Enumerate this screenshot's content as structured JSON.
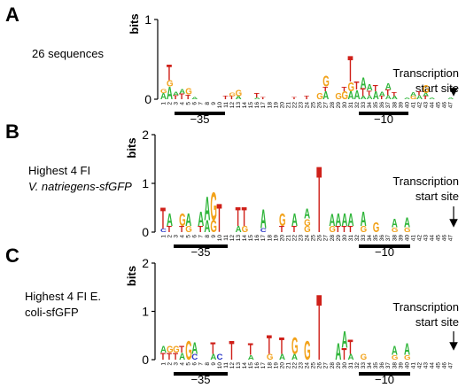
{
  "panels": [
    {
      "letter": "A",
      "description_lines": [
        "26 sequences"
      ],
      "y_axis_label": "bits",
      "y_ticks": [
        "0",
        "1"
      ],
      "positions": [
        "1",
        "2",
        "3",
        "4",
        "5",
        "6",
        "7",
        "8",
        "9",
        "10",
        "11",
        "12",
        "13",
        "14",
        "15",
        "16",
        "17",
        "18",
        "19",
        "20",
        "21",
        "22",
        "23",
        "24",
        "25",
        "26",
        "27",
        "28",
        "29",
        "30",
        "31",
        "32",
        "33",
        "34",
        "35",
        "36",
        "37",
        "38",
        "39",
        "40",
        "41",
        "42",
        "43",
        "44",
        "45",
        "46",
        "47"
      ],
      "annotation_lines": [
        "Transcription",
        "start site"
      ],
      "box_labels": [
        "−35",
        "−10"
      ]
    },
    {
      "letter": "B",
      "description_lines": [
        "Highest 4 FI",
        "V. natriegens-sfGFP"
      ],
      "y_axis_label": "bits",
      "y_ticks": [
        "0",
        "1",
        "2"
      ],
      "positions": [
        "1",
        "2",
        "3",
        "4",
        "5",
        "6",
        "7",
        "8",
        "9",
        "10",
        "11",
        "12",
        "13",
        "14",
        "15",
        "16",
        "17",
        "18",
        "19",
        "20",
        "21",
        "22",
        "23",
        "24",
        "25",
        "26",
        "27",
        "28",
        "29",
        "30",
        "31",
        "32",
        "33",
        "34",
        "35",
        "36",
        "37",
        "38",
        "39",
        "40",
        "41",
        "42",
        "43",
        "44",
        "45",
        "46",
        "47"
      ],
      "annotation_lines": [
        "Transcription",
        "start site"
      ],
      "box_labels": [
        "−35",
        "−10"
      ]
    },
    {
      "letter": "C",
      "description_lines": [
        "Highest 4 FI E.",
        "coli-sfGFP"
      ],
      "y_axis_label": "bits",
      "y_ticks": [
        "0",
        "1",
        "2"
      ],
      "positions": [
        "1",
        "2",
        "3",
        "4",
        "5",
        "6",
        "7",
        "8",
        "9",
        "10",
        "11",
        "12",
        "13",
        "14",
        "15",
        "16",
        "17",
        "18",
        "19",
        "20",
        "21",
        "22",
        "23",
        "24",
        "25",
        "26",
        "27",
        "28",
        "29",
        "30",
        "31",
        "32",
        "33",
        "34",
        "35",
        "36",
        "37",
        "38",
        "39",
        "40",
        "41",
        "42",
        "43",
        "44",
        "45",
        "46",
        "47"
      ],
      "annotation_lines": [
        "Transcription",
        "start site"
      ],
      "box_labels": [
        "−35",
        "−10"
      ]
    }
  ],
  "logos": [
    {
      "columns": [
        {
          "pos": 1,
          "stack": [
            [
              "A",
              0.08
            ],
            [
              "G",
              0.05
            ]
          ]
        },
        {
          "pos": 2,
          "stack": [
            [
              "A",
              0.16
            ],
            [
              "G",
              0.08
            ],
            [
              "T",
              0.2
            ]
          ]
        },
        {
          "pos": 3,
          "stack": [
            [
              "T",
              0.05
            ],
            [
              "A",
              0.04
            ]
          ]
        },
        {
          "pos": 4,
          "stack": [
            [
              "T",
              0.07
            ],
            [
              "A",
              0.06
            ]
          ]
        },
        {
          "pos": 5,
          "stack": [
            [
              "T",
              0.06
            ],
            [
              "G",
              0.08
            ]
          ]
        },
        {
          "pos": 6,
          "stack": [
            [
              "A",
              0.03
            ]
          ]
        },
        {
          "pos": 11,
          "stack": [
            [
              "T",
              0.04
            ]
          ]
        },
        {
          "pos": 12,
          "stack": [
            [
              "T",
              0.04
            ],
            [
              "G",
              0.04
            ]
          ]
        },
        {
          "pos": 13,
          "stack": [
            [
              "A",
              0.04
            ],
            [
              "G",
              0.08
            ]
          ]
        },
        {
          "pos": 16,
          "stack": [
            [
              "A",
              0.02
            ],
            [
              "T",
              0.06
            ]
          ]
        },
        {
          "pos": 17,
          "stack": [
            [
              "T",
              0.03
            ]
          ]
        },
        {
          "pos": 22,
          "stack": [
            [
              "T",
              0.03
            ]
          ]
        },
        {
          "pos": 24,
          "stack": [
            [
              "T",
              0.04
            ]
          ]
        },
        {
          "pos": 26,
          "stack": [
            [
              "G",
              0.08
            ]
          ]
        },
        {
          "pos": 27,
          "stack": [
            [
              "A",
              0.1
            ],
            [
              "T",
              0.06
            ],
            [
              "G",
              0.14
            ]
          ]
        },
        {
          "pos": 29,
          "stack": [
            [
              "G",
              0.08
            ]
          ]
        },
        {
          "pos": 30,
          "stack": [
            [
              "G",
              0.1
            ],
            [
              "T",
              0.06
            ]
          ]
        },
        {
          "pos": 31,
          "stack": [
            [
              "A",
              0.1
            ],
            [
              "G",
              0.12
            ],
            [
              "T",
              0.33
            ]
          ]
        },
        {
          "pos": 32,
          "stack": [
            [
              "A",
              0.12
            ],
            [
              "T",
              0.1
            ]
          ]
        },
        {
          "pos": 33,
          "stack": [
            [
              "A",
              0.04
            ],
            [
              "T",
              0.1
            ],
            [
              "A",
              0.14
            ]
          ]
        },
        {
          "pos": 34,
          "stack": [
            [
              "A",
              0.05
            ],
            [
              "T",
              0.06
            ],
            [
              "A",
              0.08
            ]
          ]
        },
        {
          "pos": 35,
          "stack": [
            [
              "A",
              0.1
            ],
            [
              "T",
              0.08
            ]
          ]
        },
        {
          "pos": 36,
          "stack": [
            [
              "T",
              0.04
            ],
            [
              "A",
              0.06
            ]
          ]
        },
        {
          "pos": 37,
          "stack": [
            [
              "A",
              0.05
            ],
            [
              "T",
              0.07
            ],
            [
              "A",
              0.08
            ]
          ]
        },
        {
          "pos": 38,
          "stack": [
            [
              "A",
              0.04
            ],
            [
              "T",
              0.05
            ]
          ]
        },
        {
          "pos": 40,
          "stack": [
            [
              "A",
              0.02
            ]
          ]
        },
        {
          "pos": 41,
          "stack": [
            [
              "G",
              0.04
            ],
            [
              "A",
              0.05
            ]
          ]
        },
        {
          "pos": 42,
          "stack": [
            [
              "A",
              0.05
            ],
            [
              "T",
              0.05
            ]
          ]
        },
        {
          "pos": 43,
          "stack": [
            [
              "T",
              0.04
            ],
            [
              "A",
              0.04
            ],
            [
              "G",
              0.1
            ]
          ]
        },
        {
          "pos": 44,
          "stack": [
            [
              "A",
              0.02
            ]
          ]
        },
        {
          "pos": 47,
          "stack": [
            [
              "A",
              0.02
            ]
          ]
        }
      ]
    },
    {
      "columns": [
        {
          "pos": 1,
          "stack": [
            [
              "C",
              0.07
            ],
            [
              "T",
              0.45
            ]
          ]
        },
        {
          "pos": 2,
          "stack": [
            [
              "T",
              0.13
            ],
            [
              "A",
              0.27
            ]
          ]
        },
        {
          "pos": 4,
          "stack": [
            [
              "T",
              0.13
            ],
            [
              "G",
              0.27
            ]
          ]
        },
        {
          "pos": 5,
          "stack": [
            [
              "G",
              0.13
            ],
            [
              "A",
              0.27
            ]
          ]
        },
        {
          "pos": 7,
          "stack": [
            [
              "T",
              0.13
            ],
            [
              "A",
              0.3
            ]
          ]
        },
        {
          "pos": 8,
          "stack": [
            [
              "A",
              0.25
            ],
            [
              "A",
              0.5
            ]
          ]
        },
        {
          "pos": 9,
          "stack": [
            [
              "G",
              0.25
            ],
            [
              "G",
              0.6
            ]
          ]
        },
        {
          "pos": 10,
          "stack": [
            [
              "T",
              0.6
            ]
          ]
        },
        {
          "pos": 13,
          "stack": [
            [
              "A",
              0.13
            ],
            [
              "T",
              0.4
            ]
          ]
        },
        {
          "pos": 14,
          "stack": [
            [
              "G",
              0.13
            ],
            [
              "T",
              0.4
            ]
          ]
        },
        {
          "pos": 17,
          "stack": [
            [
              "C",
              0.08
            ],
            [
              "A",
              0.4
            ]
          ]
        },
        {
          "pos": 20,
          "stack": [
            [
              "T",
              0.13
            ],
            [
              "G",
              0.27
            ]
          ]
        },
        {
          "pos": 22,
          "stack": [
            [
              "T",
              0.13
            ],
            [
              "A",
              0.27
            ]
          ]
        },
        {
          "pos": 24,
          "stack": [
            [
              "G",
              0.13
            ],
            [
              "G",
              0.15
            ],
            [
              "A",
              0.2
            ]
          ]
        },
        {
          "pos": 26,
          "stack": [
            [
              "T",
              1.4
            ]
          ]
        },
        {
          "pos": 28,
          "stack": [
            [
              "G",
              0.13
            ],
            [
              "A",
              0.25
            ]
          ]
        },
        {
          "pos": 29,
          "stack": [
            [
              "T",
              0.13
            ],
            [
              "A",
              0.27
            ]
          ]
        },
        {
          "pos": 30,
          "stack": [
            [
              "T",
              0.13
            ],
            [
              "A",
              0.27
            ]
          ]
        },
        {
          "pos": 31,
          "stack": [
            [
              "T",
              0.13
            ],
            [
              "A",
              0.27
            ]
          ]
        },
        {
          "pos": 33,
          "stack": [
            [
              "G",
              0.13
            ],
            [
              "A",
              0.3
            ]
          ]
        },
        {
          "pos": 35,
          "stack": [
            [
              "G",
              0.2
            ]
          ]
        },
        {
          "pos": 38,
          "stack": [
            [
              "G",
              0.1
            ],
            [
              "A",
              0.18
            ]
          ]
        },
        {
          "pos": 40,
          "stack": [
            [
              "G",
              0.1
            ],
            [
              "A",
              0.2
            ]
          ]
        }
      ]
    },
    {
      "columns": [
        {
          "pos": 1,
          "stack": [
            [
              "T",
              0.15
            ],
            [
              "A",
              0.15
            ]
          ]
        },
        {
          "pos": 2,
          "stack": [
            [
              "T",
              0.15
            ],
            [
              "G",
              0.15
            ]
          ]
        },
        {
          "pos": 3,
          "stack": [
            [
              "T",
              0.15
            ],
            [
              "G",
              0.15
            ]
          ]
        },
        {
          "pos": 4,
          "stack": [
            [
              "A",
              0.15
            ],
            [
              "T",
              0.15
            ]
          ]
        },
        {
          "pos": 5,
          "stack": [
            [
              "G",
              0.4
            ]
          ]
        },
        {
          "pos": 6,
          "stack": [
            [
              "C",
              0.12
            ],
            [
              "A",
              0.25
            ]
          ]
        },
        {
          "pos": 9,
          "stack": [
            [
              "A",
              0.12
            ],
            [
              "T",
              0.25
            ]
          ]
        },
        {
          "pos": 10,
          "stack": [
            [
              "C",
              0.12
            ]
          ]
        },
        {
          "pos": 12,
          "stack": [
            [
              "T",
              0.4
            ]
          ]
        },
        {
          "pos": 15,
          "stack": [
            [
              "A",
              0.1
            ],
            [
              "T",
              0.25
            ]
          ]
        },
        {
          "pos": 18,
          "stack": [
            [
              "G",
              0.12
            ],
            [
              "T",
              0.4
            ]
          ]
        },
        {
          "pos": 20,
          "stack": [
            [
              "A",
              0.12
            ],
            [
              "T",
              0.35
            ]
          ]
        },
        {
          "pos": 22,
          "stack": [
            [
              "A",
              0.12
            ],
            [
              "G",
              0.35
            ]
          ]
        },
        {
          "pos": 24,
          "stack": [
            [
              "G",
              0.4
            ]
          ]
        },
        {
          "pos": 26,
          "stack": [
            [
              "T",
              1.4
            ]
          ]
        },
        {
          "pos": 29,
          "stack": [
            [
              "A",
              0.35
            ]
          ]
        },
        {
          "pos": 30,
          "stack": [
            [
              "T",
              0.25
            ],
            [
              "A",
              0.35
            ]
          ]
        },
        {
          "pos": 31,
          "stack": [
            [
              "A",
              0.12
            ],
            [
              "T",
              0.3
            ]
          ]
        },
        {
          "pos": 33,
          "stack": [
            [
              "G",
              0.12
            ]
          ]
        },
        {
          "pos": 38,
          "stack": [
            [
              "G",
              0.1
            ],
            [
              "A",
              0.2
            ]
          ]
        },
        {
          "pos": 40,
          "stack": [
            [
              "G",
              0.1
            ],
            [
              "A",
              0.25
            ]
          ]
        }
      ]
    }
  ],
  "colors": {
    "A": "#2fb53a",
    "C": "#2a36c8",
    "G": "#f2a21a",
    "T": "#cf2019"
  }
}
